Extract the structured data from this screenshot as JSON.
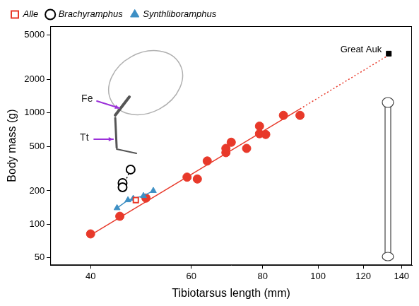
{
  "chart_data": {
    "type": "scatter",
    "x_label": "Tibiotarsus length (mm)",
    "y_label": "Body mass (g)",
    "log": true,
    "grid": false,
    "legend": "top-left",
    "xlim": [
      34,
      146
    ],
    "xticks": [
      40,
      60,
      80,
      100,
      120,
      140
    ],
    "ylim": [
      43,
      6000
    ],
    "yticks": [
      50,
      100,
      200,
      500,
      1000,
      2000,
      5000
    ],
    "series": [
      {
        "name": "Alle",
        "color": "#e8392a",
        "marker": "square_open",
        "x": [
          48
        ],
        "values": [
          165
        ]
      },
      {
        "name": "Brachyramphus",
        "color": "#000000",
        "marker": "circle_open",
        "line_style": "dotted",
        "x": [
          45.5,
          45.5,
          47
        ],
        "values": [
          235,
          215,
          310
        ]
      },
      {
        "name": "Synthliboramphus",
        "color": "#3d8fc4",
        "marker": "triangle",
        "line_style": "solid",
        "x": [
          44.5,
          46.5,
          47.5,
          49.5,
          51.5
        ],
        "values": [
          140,
          165,
          170,
          180,
          200
        ]
      },
      {
        "color": "#e8392a",
        "marker": "circle",
        "x": [
          40,
          45,
          50,
          59,
          61.5,
          64,
          69,
          69,
          70.5,
          75,
          79,
          79,
          81,
          87,
          93
        ],
        "values": [
          82,
          118,
          172,
          265,
          255,
          370,
          440,
          480,
          545,
          480,
          650,
          760,
          640,
          950,
          950
        ]
      },
      {
        "type": "line",
        "color": "#e8392a",
        "marker": "none",
        "line_style": "solid",
        "x": [
          40,
          93
        ],
        "values": [
          80,
          1085
        ]
      },
      {
        "type": "line",
        "color": "#e8392a",
        "marker": "none",
        "line_style": "dotted",
        "x": [
          93,
          133
        ],
        "values": [
          1085,
          3300
        ]
      },
      {
        "color": "#000000",
        "marker": "square",
        "x": [
          133
        ],
        "values": [
          3400
        ]
      }
    ],
    "annotations": [
      {
        "text": "Great Auk",
        "x": 133,
        "y": 3400
      }
    ],
    "inset_labels": [
      "Fe",
      "Tt"
    ]
  }
}
